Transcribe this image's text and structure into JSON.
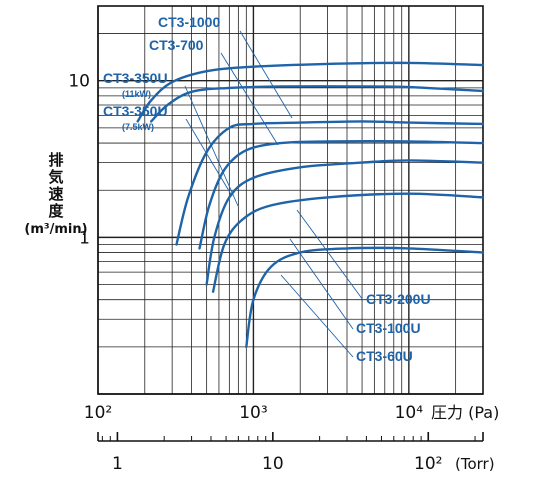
{
  "chart_data": {
    "type": "line",
    "title": "",
    "ylabel": "排気速度",
    "yunit": "(m³/min)",
    "xlabel": "圧力 (Pa)",
    "x_scale": "log",
    "y_scale": "log",
    "xlim": [
      100,
      30000
    ],
    "ylim": [
      0.1,
      30
    ],
    "x_ticks": [
      {
        "label": "10²",
        "value": 100
      },
      {
        "label": "10³",
        "value": 1000
      },
      {
        "label": "10⁴",
        "value": 10000
      }
    ],
    "x_unit_label": "圧力 (Pa)",
    "y_ticks": [
      {
        "label": "10",
        "value": 10
      },
      {
        "label": "1",
        "value": 1
      }
    ],
    "secondary_axis": {
      "unit_label": "(Torr)",
      "ticks": [
        {
          "label": "1",
          "value": 1
        },
        {
          "label": "10",
          "value": 10
        },
        {
          "label": "10²",
          "value": 100
        }
      ]
    },
    "grid": true,
    "series": [
      {
        "name": "CT3-1000",
        "x": [
          180,
          220,
          300,
          500,
          1000,
          3000,
          10000,
          30000
        ],
        "y": [
          5.5,
          7.5,
          9.8,
          11.5,
          12.3,
          12.8,
          13.0,
          12.6
        ]
      },
      {
        "name": "CT3-700",
        "x": [
          220,
          280,
          400,
          700,
          1500,
          5000,
          10000,
          30000
        ],
        "y": [
          5.5,
          7.0,
          8.5,
          9.0,
          9.2,
          9.2,
          9.1,
          8.6
        ]
      },
      {
        "name": "CT3-350U (11kW)",
        "subtitle": "(11kW)",
        "x": [
          320,
          380,
          500,
          700,
          1000,
          2000,
          5000,
          10000,
          30000
        ],
        "y": [
          0.9,
          1.8,
          3.5,
          5.0,
          5.3,
          5.4,
          5.5,
          5.4,
          5.3
        ]
      },
      {
        "name": "CT3-350U (7.5kW)",
        "subtitle": "(7.5kW)",
        "x": [
          450,
          520,
          650,
          900,
          1500,
          3000,
          10000,
          30000
        ],
        "y": [
          0.85,
          1.6,
          2.7,
          3.6,
          4.0,
          4.1,
          4.1,
          4.0
        ]
      },
      {
        "name": "CT3-200U",
        "x": [
          500,
          560,
          700,
          1000,
          2000,
          5000,
          10000,
          30000
        ],
        "y": [
          0.5,
          1.0,
          1.8,
          2.4,
          2.8,
          3.0,
          3.1,
          3.0
        ]
      },
      {
        "name": "CT3-100U",
        "x": [
          550,
          650,
          850,
          1300,
          3000,
          10000,
          30000
        ],
        "y": [
          0.45,
          0.9,
          1.3,
          1.6,
          1.8,
          1.9,
          1.8
        ]
      },
      {
        "name": "CT3-60U",
        "x": [
          900,
          1000,
          1300,
          2000,
          4000,
          10000,
          30000
        ],
        "y": [
          0.2,
          0.4,
          0.65,
          0.8,
          0.85,
          0.85,
          0.8
        ]
      }
    ],
    "line_color": "#1f63a8",
    "grid_color": "#222222"
  }
}
